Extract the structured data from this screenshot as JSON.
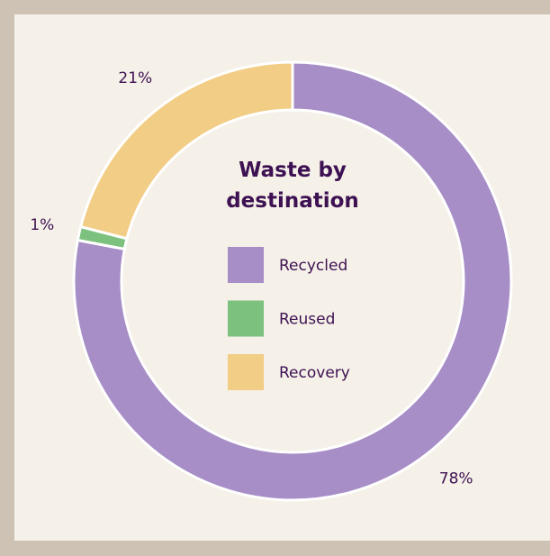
{
  "chart_data": {
    "type": "donut",
    "title": "Waste by destination",
    "categories": [
      "Recycled",
      "Reused",
      "Recovery"
    ],
    "values": [
      78,
      1,
      21
    ],
    "value_labels": [
      "78%",
      "1%",
      "21%"
    ],
    "colors": [
      "#a78ec6",
      "#7cc17e",
      "#f2cd85"
    ],
    "legend": "center"
  }
}
